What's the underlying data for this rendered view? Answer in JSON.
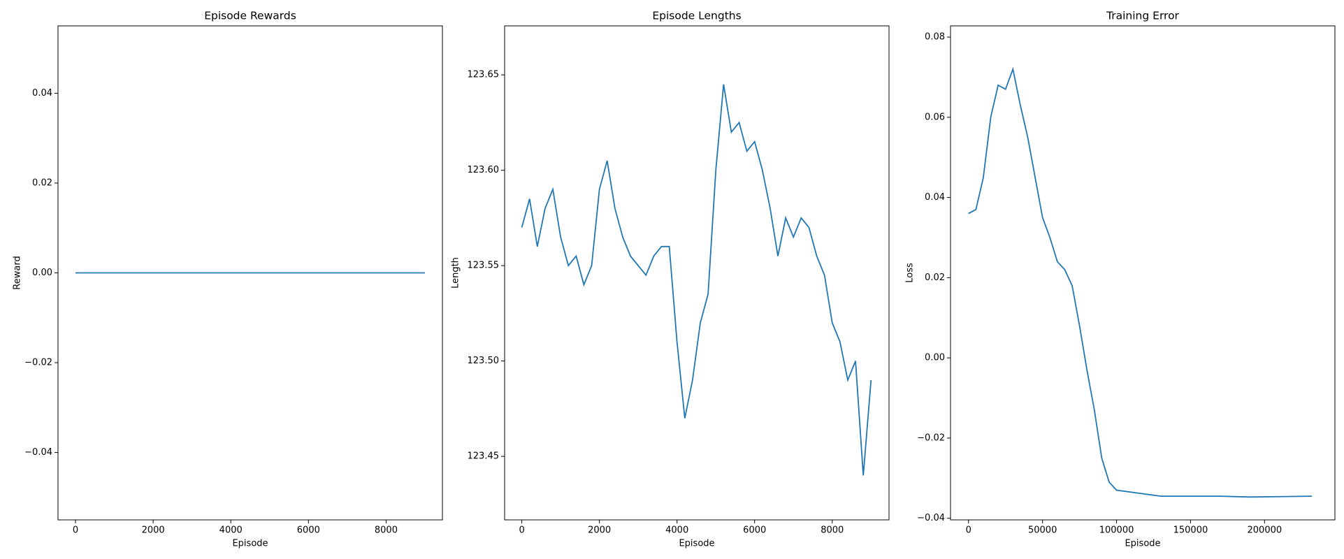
{
  "chart_data": [
    {
      "type": "line",
      "title": "Episode Rewards",
      "x_label": "Episode",
      "y_label": "Reward",
      "color": "#1f77b4",
      "x": [
        0,
        9000
      ],
      "values": [
        0,
        0
      ],
      "xlim": [
        -450,
        9450
      ],
      "xticks": [
        0,
        2000,
        4000,
        6000,
        8000
      ],
      "ylim": [
        -0.055,
        0.055
      ],
      "yticks": [
        {
          "value": -0.04,
          "label": "−0.04"
        },
        {
          "value": -0.02,
          "label": "−0.02"
        },
        {
          "value": 0,
          "label": "0.00"
        },
        0.02,
        0.04
      ]
    },
    {
      "type": "line",
      "title": "Episode Lengths",
      "x_label": "Episode",
      "y_label": "Length",
      "color": "#1f77b4",
      "x": [
        0,
        200,
        400,
        600,
        800,
        1000,
        1200,
        1400,
        1600,
        1800,
        2000,
        2200,
        2400,
        2600,
        2800,
        3000,
        3200,
        3400,
        3600,
        3800,
        4000,
        4200,
        4400,
        4600,
        4800,
        5000,
        5200,
        5400,
        5600,
        5800,
        6000,
        6200,
        6400,
        6600,
        6800,
        7000,
        7200,
        7400,
        7600,
        7800,
        8000,
        8200,
        8400,
        8600,
        8800,
        9000
      ],
      "values": [
        123.57,
        123.585,
        123.56,
        123.58,
        123.59,
        123.565,
        123.55,
        123.555,
        123.54,
        123.55,
        123.59,
        123.605,
        123.58,
        123.565,
        123.555,
        123.55,
        123.545,
        123.555,
        123.56,
        123.56,
        123.51,
        123.47,
        123.49,
        123.52,
        123.535,
        123.6,
        123.645,
        123.62,
        123.625,
        123.61,
        123.615,
        123.6,
        123.58,
        123.555,
        123.575,
        123.565,
        123.575,
        123.57,
        123.555,
        123.545,
        123.52,
        123.51,
        123.49,
        123.5,
        123.44,
        123.49
      ],
      "xlim": [
        -443,
        9463
      ],
      "xticks": [
        0,
        2000,
        4000,
        6000,
        8000
      ],
      "ylim": [
        123.4167,
        123.6757
      ],
      "yticks": [
        123.45,
        {
          "value": 123.5,
          "label": "123.50"
        },
        123.55,
        {
          "value": 123.6,
          "label": "123.60"
        },
        123.65
      ]
    },
    {
      "type": "line",
      "title": "Training Error",
      "x_label": "Episode",
      "y_label": "Loss",
      "color": "#1f77b4",
      "x": [
        0,
        5000,
        10000,
        15000,
        20000,
        25000,
        30000,
        35000,
        40000,
        45000,
        50000,
        55000,
        60000,
        65000,
        70000,
        75000,
        80000,
        85000,
        90000,
        95000,
        100000,
        110000,
        120000,
        130000,
        150000,
        170000,
        190000,
        210000,
        232000
      ],
      "values": [
        0.036,
        0.037,
        0.045,
        0.06,
        0.068,
        0.067,
        0.072,
        0.063,
        0.055,
        0.045,
        0.035,
        0.03,
        0.024,
        0.022,
        0.018,
        0.008,
        -0.003,
        -0.013,
        -0.025,
        -0.031,
        -0.033,
        -0.0335,
        -0.034,
        -0.0345,
        -0.0345,
        -0.0345,
        -0.0347,
        -0.0346,
        -0.0345
      ],
      "xlim": [
        -12174,
        247536
      ],
      "xticks": [
        0,
        50000,
        100000,
        150000,
        200000
      ],
      "ylim": [
        -0.0404,
        0.0828
      ],
      "yticks": [
        {
          "value": -0.04,
          "label": "−0.04"
        },
        {
          "value": -0.02,
          "label": "−0.02"
        },
        {
          "value": 0,
          "label": "0.00"
        },
        0.02,
        0.04,
        0.06,
        0.08
      ]
    }
  ]
}
